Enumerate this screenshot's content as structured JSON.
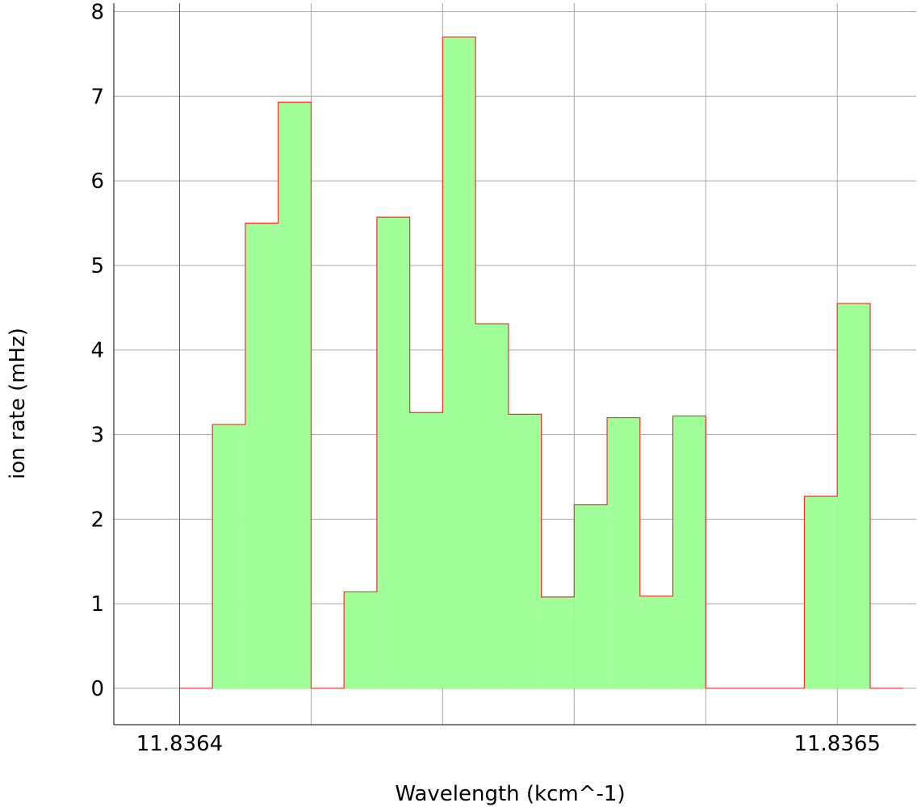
{
  "chart_data": {
    "type": "area",
    "xlabel": "Wavelength (kcm^-1)",
    "ylabel": "ion rate (mHz)",
    "xlim": [
      11.83639,
      11.836512
    ],
    "ylim": [
      -0.43,
      8.1
    ],
    "x_ticks": [
      11.8364,
      11.8365
    ],
    "x_tick_labels": [
      "11.8364",
      "11.8365"
    ],
    "y_ticks": [
      0,
      1,
      2,
      3,
      4,
      5,
      6,
      7,
      8
    ],
    "y_tick_labels": [
      "0",
      "1",
      "2",
      "3",
      "4",
      "5",
      "6",
      "7",
      "8"
    ],
    "x_gridlines": [
      11.8364,
      11.83642,
      11.83644,
      11.83646,
      11.83648,
      11.8365
    ],
    "grid": true,
    "fill_color": "#a0ff98",
    "line_color": "#ff2a2a",
    "series": [
      {
        "bin_width": 5e-06,
        "x": [
          11.8364,
          11.836405,
          11.83641,
          11.836415,
          11.83642,
          11.836425,
          11.83643,
          11.836435,
          11.83644,
          11.836445,
          11.83645,
          11.836455,
          11.83646,
          11.836465,
          11.83647,
          11.836475,
          11.83648,
          11.836485,
          11.83649,
          11.836495,
          11.8365,
          11.836505
        ],
        "values": [
          0,
          3.12,
          5.5,
          6.93,
          0,
          1.14,
          5.57,
          3.26,
          7.7,
          4.31,
          3.24,
          1.08,
          2.17,
          3.2,
          1.09,
          3.22,
          0,
          0,
          0,
          2.27,
          4.55,
          0
        ]
      }
    ]
  }
}
